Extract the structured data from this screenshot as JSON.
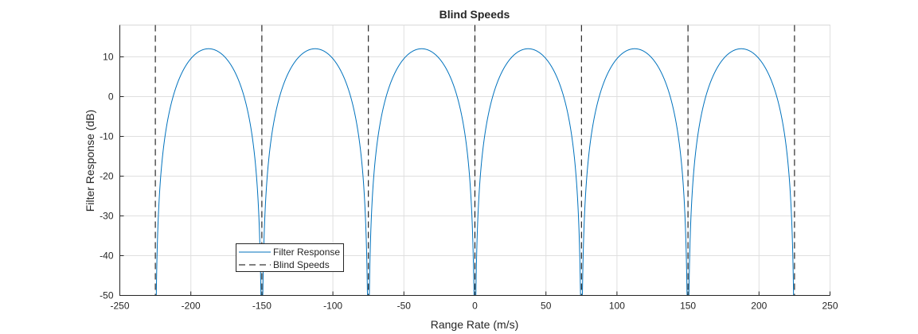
{
  "chart_data": {
    "type": "line",
    "title": "Blind Speeds",
    "xlabel": "Range Rate (m/s)",
    "ylabel": "Filter Response (dB)",
    "xlim": [
      -250,
      250
    ],
    "ylim": [
      -50,
      18
    ],
    "xticks": [
      -250,
      -200,
      -150,
      -100,
      -50,
      0,
      50,
      100,
      150,
      200,
      250
    ],
    "yticks": [
      -50,
      -40,
      -30,
      -20,
      -10,
      0,
      10
    ],
    "grid": true,
    "legend": {
      "placement": "lower-left",
      "entries": [
        "Filter Response",
        "Blind Speeds"
      ]
    },
    "series": [
      {
        "name": "Filter Response",
        "color": "#0072bd",
        "style": "solid",
        "formula": "20*log10(4*sin^2(pi*v/75))",
        "x_range": [
          -225,
          225
        ],
        "blind_speed_spacing": 75,
        "peak_db": 12.04,
        "peaks_x": [
          -187.5,
          -112.5,
          -37.5,
          37.5,
          112.5,
          187.5
        ]
      },
      {
        "name": "Blind Speeds",
        "color": "#000000",
        "style": "dashed",
        "x": [
          -225,
          -150,
          -75,
          0,
          75,
          150,
          225
        ]
      }
    ]
  }
}
